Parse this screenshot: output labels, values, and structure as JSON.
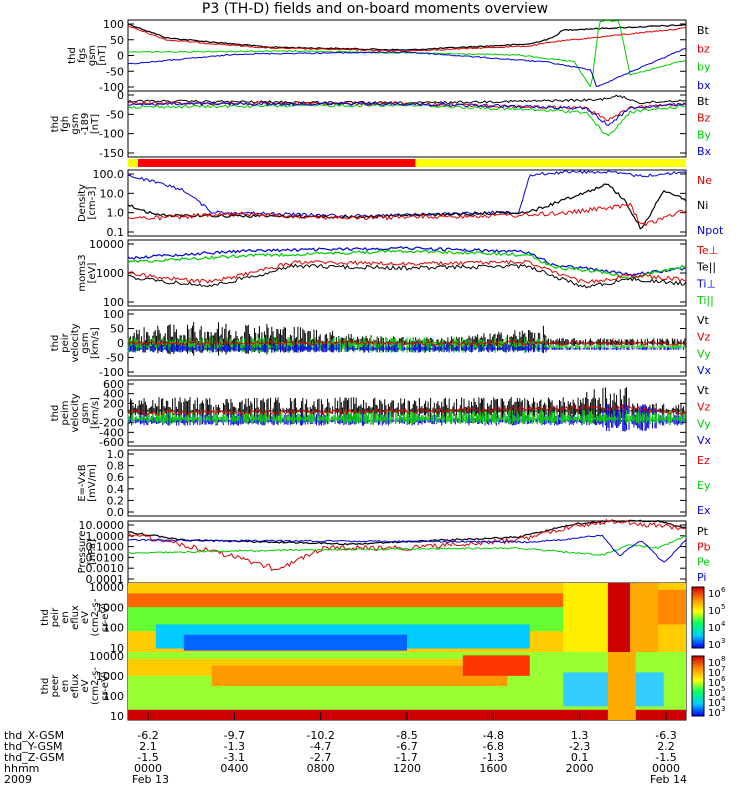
{
  "title": "P3 (TH-D) fields and on-board moments overview",
  "colors": {
    "black": "#000000",
    "red": "#dd0000",
    "green": "#00cc00",
    "blue": "#0000dd",
    "yellow": "#ffff00",
    "frame": "#000000"
  },
  "panels": [
    {
      "id": "fgs",
      "ylabel": [
        "thd",
        "fgs",
        "gsm",
        "[nT]"
      ],
      "yticks": [
        "100",
        "50",
        "0",
        "-50",
        "-100"
      ],
      "scale": "linear",
      "ylim": [
        -120,
        100
      ],
      "legend": [
        {
          "text": "Bt",
          "color": "#000000"
        },
        {
          "text": "bz",
          "color": "#dd0000"
        },
        {
          "text": "by",
          "color": "#00cc00"
        },
        {
          "text": "bx",
          "color": "#0000dd"
        }
      ]
    },
    {
      "id": "fgh",
      "ylabel": [
        "thd",
        "fgh",
        "gsm",
        "-189",
        "[nT]"
      ],
      "yticks": [
        "0",
        "-50",
        "-100",
        "-150"
      ],
      "scale": "linear",
      "ylim": [
        -175,
        20
      ],
      "legend": [
        {
          "text": "Bt",
          "color": "#000000"
        },
        {
          "text": "Bz",
          "color": "#dd0000"
        },
        {
          "text": "By",
          "color": "#00cc00"
        },
        {
          "text": "Bx",
          "color": "#0000dd"
        }
      ]
    },
    {
      "id": "density",
      "ylabel": [
        "Density",
        "[cm-3]"
      ],
      "yticks": [
        "100.0",
        "10.0",
        "1.0",
        "0.1"
      ],
      "scale": "log",
      "ylim": [
        0.1,
        100
      ],
      "legend": [
        {
          "text": "Ne",
          "color": "#dd0000"
        },
        {
          "text": "Ni",
          "color": "#000000"
        },
        {
          "text": "Npot",
          "color": "#0000dd"
        }
      ]
    },
    {
      "id": "temp",
      "ylabel": [
        "moms3",
        "[eV]"
      ],
      "yticks": [
        "10000",
        "1000",
        "100"
      ],
      "scale": "log",
      "ylim": [
        20,
        10000
      ],
      "legend": [
        {
          "text": "Te⊥",
          "color": "#dd0000"
        },
        {
          "text": "Te||",
          "color": "#000000"
        },
        {
          "text": "Ti⊥",
          "color": "#0000dd"
        },
        {
          "text": "Ti||",
          "color": "#00cc00"
        }
      ]
    },
    {
      "id": "peir",
      "ylabel": [
        "thd",
        "peir",
        "velocity",
        "gsm",
        "[km/s]"
      ],
      "yticks": [
        "100",
        "50",
        "0",
        "-50",
        "-100"
      ],
      "scale": "linear",
      "ylim": [
        -100,
        100
      ],
      "legend": [
        {
          "text": "Vt",
          "color": "#000000"
        },
        {
          "text": "Vz",
          "color": "#dd0000"
        },
        {
          "text": "Vy",
          "color": "#00cc00"
        },
        {
          "text": "Vx",
          "color": "#0000dd"
        }
      ]
    },
    {
      "id": "peim",
      "ylabel": [
        "thd",
        "peim",
        "velocity",
        "gsm",
        "[km/s]"
      ],
      "yticks": [
        "600",
        "400",
        "200",
        "0",
        "-200",
        "-400",
        "-600"
      ],
      "scale": "linear",
      "ylim": [
        -600,
        600
      ],
      "legend": [
        {
          "text": "Vt",
          "color": "#000000"
        },
        {
          "text": "Vz",
          "color": "#dd0000"
        },
        {
          "text": "Vy",
          "color": "#00cc00"
        },
        {
          "text": "Vx",
          "color": "#0000dd"
        }
      ]
    },
    {
      "id": "efield",
      "ylabel": [
        "E=-VxB",
        "[mV/m]"
      ],
      "yticks": [
        "1.0",
        "0.8",
        "0.6",
        "0.4",
        "0.2",
        "0.0"
      ],
      "scale": "linear",
      "ylim": [
        0,
        1
      ],
      "legend": [
        {
          "text": "Ez",
          "color": "#dd0000"
        },
        {
          "text": "Ey",
          "color": "#00cc00"
        },
        {
          "text": "Ex",
          "color": "#0000dd"
        }
      ]
    },
    {
      "id": "pressure",
      "ylabel": [
        "Pressure",
        "[nPa]"
      ],
      "yticks": [
        "10.0000",
        "1.0000",
        "0.1000",
        "0.0100",
        "0.0010",
        "0.0001"
      ],
      "scale": "log",
      "ylim": [
        0.0001,
        10
      ],
      "legend": [
        {
          "text": "Pt",
          "color": "#000000"
        },
        {
          "text": "Pb",
          "color": "#dd0000"
        },
        {
          "text": "Pe",
          "color": "#00cc00"
        },
        {
          "text": "Pi",
          "color": "#0000dd"
        }
      ]
    },
    {
      "id": "ion_spec",
      "ylabel": [
        "thd",
        "peir",
        "en",
        "eflux",
        "eV",
        "(cm2-s-",
        "sr-eV)"
      ],
      "yticks": [
        "10000",
        "1000",
        "100",
        "10"
      ],
      "scale": "log",
      "colorbar": [
        "10",
        "10",
        "10",
        "10"
      ],
      "colorbar_exp": [
        "6",
        "5",
        "4",
        "3"
      ]
    },
    {
      "id": "el_spec",
      "ylabel": [
        "thd",
        "peer",
        "en",
        "eflux",
        "eV",
        "(cm2-s-",
        "sr-eV)"
      ],
      "yticks": [
        "10000",
        "1000",
        "100",
        "10"
      ],
      "scale": "log",
      "colorbar": [
        "10",
        "10",
        "10",
        "10",
        "10",
        "10"
      ],
      "colorbar_exp": [
        "8",
        "7",
        "6",
        "5",
        "4",
        "3"
      ]
    }
  ],
  "mode_bar": {
    "colors": [
      "#ff0000",
      "#ffff00"
    ],
    "split_time": "1230"
  },
  "xaxis": {
    "row_labels": [
      "thd_X-GSM",
      "thd_Y-GSM",
      "thd_Z-GSM",
      "hhmm",
      "2009"
    ],
    "ticks": [
      {
        "x": "-6.2",
        "y": "2.1",
        "z": "-1.5",
        "time": "0000",
        "date": "Feb 13"
      },
      {
        "x": "-9.7",
        "y": "-1.3",
        "z": "-3.1",
        "time": "0400",
        "date": ""
      },
      {
        "x": "-10.2",
        "y": "-4.7",
        "z": "-2.7",
        "time": "0800",
        "date": ""
      },
      {
        "x": "-8.5",
        "y": "-6.7",
        "z": "-1.7",
        "time": "1200",
        "date": ""
      },
      {
        "x": "-4.8",
        "y": "-6.8",
        "z": "-1.3",
        "time": "1600",
        "date": ""
      },
      {
        "x": "1.3",
        "y": "-2.3",
        "z": "0.1",
        "time": "2000",
        "date": ""
      },
      {
        "x": "-6.3",
        "y": "2.2",
        "z": "-1.5",
        "time": "0000",
        "date": "Feb 14"
      }
    ]
  },
  "chart_data": {
    "type": "line",
    "title": "P3 (TH-D) fields and on-board moments overview",
    "x_time_range": [
      "2009-02-13 00:00",
      "2009-02-14 00:00"
    ],
    "x": [
      "0000",
      "0400",
      "0800",
      "1200",
      "1600",
      "2000",
      "0000"
    ],
    "series": [
      {
        "panel": "fgs",
        "name": "Bt",
        "values": [
          80,
          20,
          8,
          8,
          20,
          60,
          90
        ]
      },
      {
        "panel": "fgs",
        "name": "bz",
        "values": [
          75,
          18,
          6,
          6,
          15,
          10,
          80
        ]
      },
      {
        "panel": "fgs",
        "name": "by",
        "values": [
          2,
          3,
          1,
          0,
          -5,
          100,
          -15
        ]
      },
      {
        "panel": "fgs",
        "name": "bx",
        "values": [
          -45,
          -10,
          2,
          0,
          -20,
          -60,
          0
        ]
      },
      {
        "panel": "fgh",
        "name": "Bt",
        "values": [
          12,
          3,
          1,
          1,
          3,
          30,
          15
        ]
      },
      {
        "panel": "fgh",
        "name": "Bz",
        "values": [
          8,
          2,
          0,
          0,
          -2,
          -40,
          12
        ]
      },
      {
        "panel": "fgh",
        "name": "By",
        "values": [
          -4,
          0,
          0,
          0,
          -5,
          -90,
          -3
        ]
      },
      {
        "panel": "fgh",
        "name": "Bx",
        "values": [
          -5,
          -1,
          0,
          0,
          -3,
          -60,
          0
        ]
      },
      {
        "panel": "density",
        "name": "Ne",
        "values": [
          0.5,
          0.4,
          0.5,
          0.5,
          0.9,
          1.0,
          0.8
        ]
      },
      {
        "panel": "density",
        "name": "Ni",
        "values": [
          2.0,
          0.4,
          0.5,
          0.5,
          1.0,
          30,
          2.0
        ]
      },
      {
        "panel": "density",
        "name": "Npot",
        "values": [
          50,
          0.5,
          0.6,
          0.6,
          2.0,
          100,
          80
        ]
      },
      {
        "panel": "temp",
        "name": "Te⊥",
        "values": [
          1500,
          2000,
          2200,
          2500,
          2000,
          200,
          1500
        ]
      },
      {
        "panel": "temp",
        "name": "Te||",
        "values": [
          1000,
          1500,
          2000,
          2000,
          1500,
          150,
          1000
        ]
      },
      {
        "panel": "temp",
        "name": "Ti⊥",
        "values": [
          4000,
          5000,
          6000,
          6000,
          5000,
          300,
          3000
        ]
      },
      {
        "panel": "temp",
        "name": "Ti||",
        "values": [
          3000,
          4500,
          5000,
          5500,
          4500,
          250,
          2500
        ]
      },
      {
        "panel": "peir",
        "name": "Vt",
        "values": [
          20,
          30,
          40,
          35,
          20,
          5,
          10
        ]
      },
      {
        "panel": "peim",
        "name": "Vt",
        "values": [
          100,
          150,
          200,
          180,
          150,
          300,
          100
        ]
      },
      {
        "panel": "pressure",
        "name": "Pt",
        "values": [
          3.0,
          0.3,
          0.15,
          0.2,
          0.5,
          10,
          5.0
        ]
      },
      {
        "panel": "pressure",
        "name": "Pb",
        "values": [
          2.0,
          0.1,
          0.01,
          0.03,
          0.3,
          9,
          4.0
        ]
      },
      {
        "panel": "pressure",
        "name": "Pe",
        "values": [
          0.03,
          0.04,
          0.05,
          0.05,
          0.08,
          0.03,
          0.3
        ]
      },
      {
        "panel": "pressure",
        "name": "Pi",
        "values": [
          0.5,
          0.2,
          0.3,
          0.3,
          0.4,
          0.04,
          0.6
        ]
      }
    ]
  }
}
